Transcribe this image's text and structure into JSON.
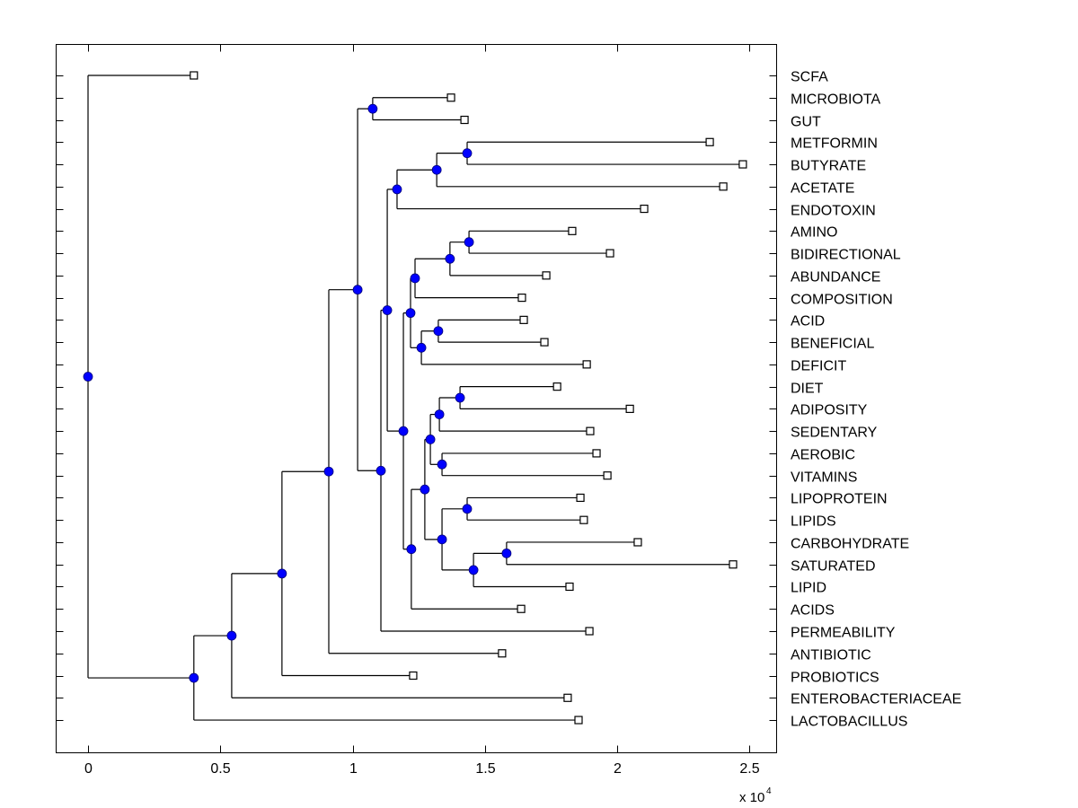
{
  "chart_data": {
    "type": "dendrogram",
    "title": "",
    "xlabel": "",
    "ylabel": "",
    "x_multiplier_label": "x 10",
    "x_multiplier_exponent": "4",
    "xlim": [
      -0.12,
      2.6
    ],
    "xticks": [
      {
        "value": 0,
        "label": "0"
      },
      {
        "value": 0.5,
        "label": "0.5"
      },
      {
        "value": 1,
        "label": "1"
      },
      {
        "value": 1.5,
        "label": "1.5"
      },
      {
        "value": 2,
        "label": "2"
      },
      {
        "value": 2.5,
        "label": "2.5"
      }
    ],
    "leaf_order": [
      "SCFA",
      "MICROBIOTA",
      "GUT",
      "METFORMIN",
      "BUTYRATE",
      "ACETATE",
      "ENDOTOXIN",
      "AMINO",
      "BIDIRECTIONAL",
      "ABUNDANCE",
      "COMPOSITION",
      "ACID",
      "BENEFICIAL",
      "DEFICIT",
      "DIET",
      "ADIPOSITY",
      "SEDENTARY",
      "AEROBIC",
      "VITAMINS",
      "LIPOPROTEIN",
      "LIPIDS",
      "CARBOHYDRATE",
      "SATURATED",
      "LIPID",
      "ACIDS",
      "PERMEABILITY",
      "ANTIBIOTIC",
      "PROBIOTICS",
      "ENTEROBACTERIACEAE",
      "LACTOBACILLUS"
    ],
    "colors": {
      "node": "#0000ff",
      "node_outline": "#00007a",
      "line": "#000000",
      "leaf_fill": "#ffffff"
    },
    "tree": {
      "x": 0,
      "children": [
        {
          "label": "SCFA",
          "x": 0.4
        },
        {
          "x": 0.4,
          "children": [
            {
              "x": 0.543,
              "children": [
                {
                  "x": 0.733,
                  "children": [
                    {
                      "x": 0.91,
                      "children": [
                        {
                          "x": 1.019,
                          "children": [
                            {
                              "x": 1.076,
                              "children": [
                                {
                                  "label": "MICROBIOTA",
                                  "x": 1.372
                                },
                                {
                                  "label": "GUT",
                                  "x": 1.423
                                }
                              ]
                            },
                            {
                              "x": 1.107,
                              "children": [
                                {
                                  "x": 1.131,
                                  "children": [
                                    {
                                      "x": 1.168,
                                      "children": [
                                        {
                                          "x": 1.318,
                                          "children": [
                                            {
                                              "x": 1.433,
                                              "children": [
                                                {
                                                  "label": "METFORMIN",
                                                  "x": 2.35
                                                },
                                                {
                                                  "label": "BUTYRATE",
                                                  "x": 2.475
                                                }
                                              ]
                                            },
                                            {
                                              "label": "ACETATE",
                                              "x": 2.401
                                            }
                                          ]
                                        },
                                        {
                                          "label": "ENDOTOXIN",
                                          "x": 2.102
                                        }
                                      ]
                                    },
                                    {
                                      "x": 1.192,
                                      "children": [
                                        {
                                          "x": 1.219,
                                          "children": [
                                            {
                                              "x": 1.236,
                                              "children": [
                                                {
                                                  "x": 1.368,
                                                  "children": [
                                                    {
                                                      "x": 1.44,
                                                      "children": [
                                                        {
                                                          "label": "AMINO",
                                                          "x": 1.83
                                                        },
                                                        {
                                                          "label": "BIDIRECTIONAL",
                                                          "x": 1.973
                                                        }
                                                      ]
                                                    },
                                                    {
                                                      "label": "ABUNDANCE",
                                                      "x": 1.732
                                                    }
                                                  ]
                                                },
                                                {
                                                  "label": "COMPOSITION",
                                                  "x": 1.64
                                                }
                                              ]
                                            },
                                            {
                                              "x": 1.26,
                                              "children": [
                                                {
                                                  "x": 1.324,
                                                  "children": [
                                                    {
                                                      "label": "ACID",
                                                      "x": 1.647
                                                    },
                                                    {
                                                      "label": "BENEFICIAL",
                                                      "x": 1.725
                                                    }
                                                  ]
                                                },
                                                {
                                                  "label": "DEFICIT",
                                                  "x": 1.885
                                                }
                                              ]
                                            }
                                          ]
                                        },
                                        {
                                          "x": 1.222,
                                          "children": [
                                            {
                                              "x": 1.273,
                                              "children": [
                                                {
                                                  "x": 1.294,
                                                  "children": [
                                                    {
                                                      "x": 1.328,
                                                      "children": [
                                                        {
                                                          "x": 1.406,
                                                          "children": [
                                                            {
                                                              "label": "DIET",
                                                              "x": 1.773
                                                            },
                                                            {
                                                              "label": "ADIPOSITY",
                                                              "x": 2.048
                                                            }
                                                          ]
                                                        },
                                                        {
                                                          "label": "SEDENTARY",
                                                          "x": 1.898
                                                        }
                                                      ]
                                                    },
                                                    {
                                                      "x": 1.338,
                                                      "children": [
                                                        {
                                                          "label": "AEROBIC",
                                                          "x": 1.922
                                                        },
                                                        {
                                                          "label": "VITAMINS",
                                                          "x": 1.963
                                                        }
                                                      ]
                                                    }
                                                  ]
                                                },
                                                {
                                                  "x": 1.338,
                                                  "children": [
                                                    {
                                                      "x": 1.433,
                                                      "children": [
                                                        {
                                                          "label": "LIPOPROTEIN",
                                                          "x": 1.861
                                                        },
                                                        {
                                                          "label": "LIPIDS",
                                                          "x": 1.874
                                                        }
                                                      ]
                                                    },
                                                    {
                                                      "x": 1.457,
                                                      "children": [
                                                        {
                                                          "x": 1.582,
                                                          "children": [
                                                            {
                                                              "label": "CARBOHYDRATE",
                                                              "x": 2.078
                                                            },
                                                            {
                                                              "label": "SATURATED",
                                                              "x": 2.438
                                                            }
                                                          ]
                                                        },
                                                        {
                                                          "label": "LIPID",
                                                          "x": 1.82
                                                        }
                                                      ]
                                                    }
                                                  ]
                                                }
                                              ]
                                            },
                                            {
                                              "label": "ACIDS",
                                              "x": 1.637
                                            }
                                          ]
                                        }
                                      ]
                                    }
                                  ]
                                },
                                {
                                  "label": "PERMEABILITY",
                                  "x": 1.895
                                }
                              ]
                            }
                          ]
                        },
                        {
                          "label": "ANTIBIOTIC",
                          "x": 1.565
                        }
                      ]
                    },
                    {
                      "label": "PROBIOTICS",
                      "x": 1.229
                    }
                  ]
                },
                {
                  "label": "ENTEROBACTERIACEAE",
                  "x": 1.813
                }
              ]
            },
            {
              "label": "LACTOBACILLUS",
              "x": 1.854
            }
          ]
        }
      ]
    }
  }
}
